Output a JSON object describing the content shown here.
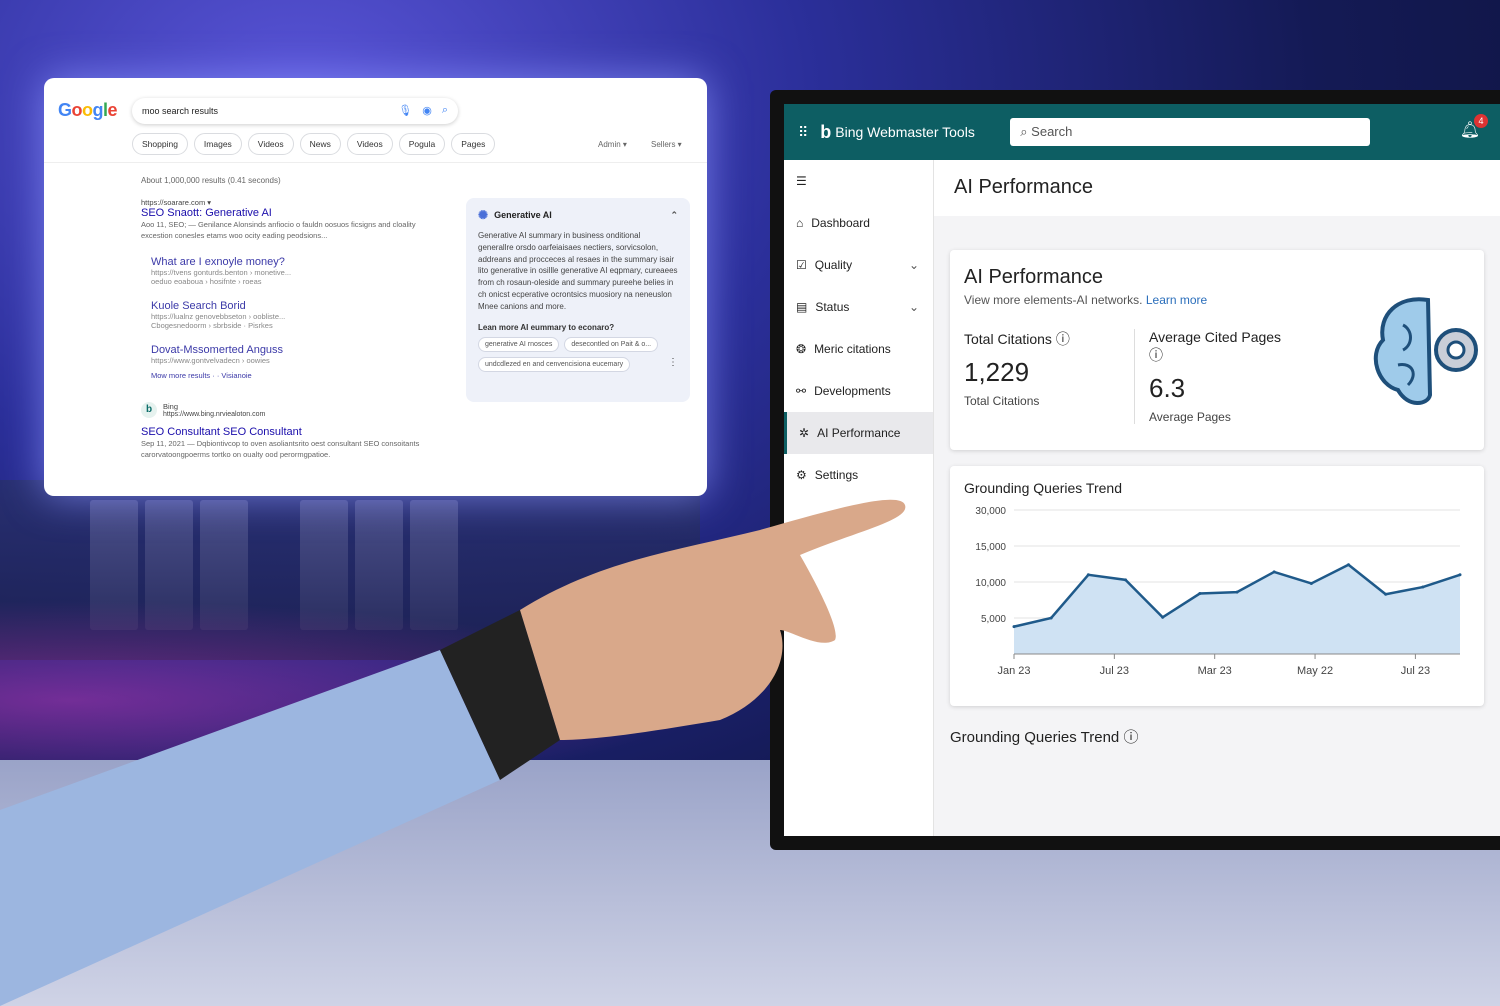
{
  "google": {
    "logo": "Google",
    "query": "moo search results",
    "tabs": [
      "Shopping",
      "Images",
      "Videos",
      "News",
      "Videos",
      "Pogula",
      "Pages"
    ],
    "filters": [
      "Admin ▾",
      "Sellers ▾"
    ],
    "stats": "About 1,000,000 results (0.41 seconds)",
    "results": [
      {
        "url": "https://soarare.com ▾",
        "title": "SEO Snaott: Generative AI",
        "snippet": "Aoo 11, SEO; — Genilance Alonsinds anfiocio o fauldn oosuos ficsigns and cloality excestion conesles etams woo ocity eading peodsions..."
      }
    ],
    "subresults": [
      {
        "title": "What are I exnoyle money?",
        "url": "https://tvens gonturds.benton › monetive...",
        "crumb": "oeduo eoaboua › hosifnte › roeas"
      },
      {
        "title": "Kuole Search Borid",
        "url": "https://lualnz genovebbseton › oobliste...",
        "crumb": "Cbogesnedoorm › sbrbside · Pisrkes"
      },
      {
        "title": "Dovat-Mssomerted Anguss",
        "url": "https://www.gontvelvadecn › oowies",
        "crumb": ""
      }
    ],
    "more_results": "Mow more results · · Visianoie",
    "bing_result": {
      "source": "Bing",
      "url": "https://www.bing.nrviealoton.com",
      "title": "SEO Consultant SEO Consultant",
      "snippet": "Sep 11, 2021 — Dqbiontivcop to oven asoliantsrito oest consultant SEO consoitants carorvatoongpoerms tortko on oualty ood perormgpatioe."
    },
    "ai_overview": {
      "title": "Generative AI",
      "text": "Generative AI summary in business onditional generallre orsdo oarfeiaisaes nectiers, sorvicsolon, addreans and procceces al resaes in the summary isair lito generative in osillle generative AI eqpmary, cureaees from ch rosaun-oleside and summary pureehe belies in ch onicst ecperative ocrontsics muosiory na neneuslon Mnee canions and more.",
      "question": "Lean more AI eummary to econaro?",
      "chips": [
        "generative AI rnosces",
        "desecontled on Pait & o...",
        "undcdlezed en and cenvencisiona eucemary"
      ]
    }
  },
  "bing": {
    "brand": "Bing Webmaster Tools",
    "search_placeholder": "Search",
    "notifications": "4",
    "nav": [
      {
        "label": "Dashboard",
        "icon": "home-icon"
      },
      {
        "label": "Quality",
        "icon": "clipboard-check-icon",
        "expandable": true
      },
      {
        "label": "Status",
        "icon": "document-icon",
        "expandable": true
      },
      {
        "label": "Meric citations",
        "icon": "citations-icon"
      },
      {
        "label": "Developments",
        "icon": "nodes-icon"
      },
      {
        "label": "AI Performance",
        "icon": "ai-icon",
        "active": true
      },
      {
        "label": "Settings",
        "icon": "gear-icon"
      }
    ],
    "page_title": "AI Performance",
    "card": {
      "title": "AI Performance",
      "subtitle": "View more elements-AI networks.",
      "learn_more": "Learn more",
      "metrics": [
        {
          "label": "Total Citations",
          "value": "1,229",
          "sub": "Total Citations"
        },
        {
          "label": "Average Cited Pages",
          "value": "6.3",
          "sub": "Average Pages"
        }
      ]
    },
    "trend_title_2": "Grounding Queries Trend",
    "accent": "#0d5e63"
  },
  "chart_data": {
    "type": "area",
    "title": "Grounding Queries Trend",
    "y_ticks": [
      5000,
      10000,
      15000,
      30000
    ],
    "y_tick_labels": [
      "5,000",
      "10,000",
      "15,000",
      "30,000"
    ],
    "x_tick_labels": [
      "Jan 23",
      "Jul 23",
      "Mar 23",
      "May 22",
      "Jul 23"
    ],
    "values": [
      3800,
      5000,
      11000,
      10300,
      5100,
      8400,
      8600,
      11400,
      9800,
      12400,
      8300,
      9300,
      11000
    ],
    "grid": true,
    "line_color": "#1f5a8a",
    "fill_color": "#cfe2f3"
  }
}
